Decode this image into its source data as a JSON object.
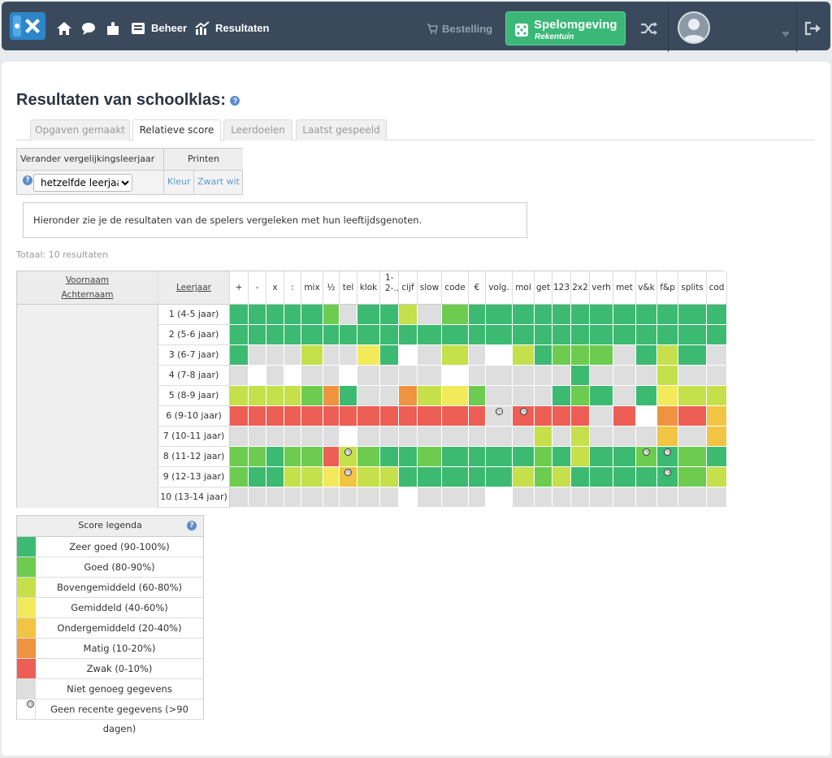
{
  "nav": {
    "beheer": "Beheer",
    "resultaten": "Resultaten",
    "bestelling": "Bestelling",
    "spelomgeving": "Spelomgeving",
    "spelomgeving_sub": "Rekentuin"
  },
  "page": {
    "title": "Resultaten van schoolklas:",
    "help": "?"
  },
  "tabs": [
    {
      "label": "Opgaven gemaakt",
      "active": false
    },
    {
      "label": "Relatieve score",
      "active": true
    },
    {
      "label": "Leerdoelen",
      "active": false
    },
    {
      "label": "Laatst gespeeld",
      "active": false
    }
  ],
  "controls": {
    "compare_label": "Verander vergelijkingsleerjaar",
    "compare_value": "hetzelfde leerjaar",
    "print_label": "Printen",
    "print_color": "Kleur",
    "print_bw": "Zwart wit"
  },
  "info_text": "Hieronder zie je de resultaten van de spelers vergeleken met hun leeftijdsgenoten.",
  "total_text": "Totaal: 10 resultaten",
  "table": {
    "col_voornaam": "Voornaam",
    "col_achternaam": "Achternaam",
    "col_leerjaar": "Leerjaar",
    "games": [
      "+",
      "-",
      "x",
      ":",
      "mix",
      "½",
      "tel",
      "klok",
      "1-2-..",
      "cijf",
      "slow",
      "code",
      "€",
      "volg.",
      "mol",
      "get",
      "123",
      "2x2",
      "verh",
      "met",
      "v&k",
      "f&p",
      "splits",
      "cod"
    ],
    "rows": [
      {
        "label": "1 (4-5 jaar)",
        "cells": [
          "Z",
          "Z",
          "Z",
          "Z",
          "Z",
          "G",
          "N",
          "Z",
          "Z",
          "B",
          "N",
          "G",
          "Z",
          "Z",
          "Z",
          "Z",
          "Z",
          "Z",
          "Z",
          "Z",
          "Z",
          "Z",
          "Z",
          "Z"
        ]
      },
      {
        "label": "2 (5-6 jaar)",
        "cells": [
          "Z",
          "Z",
          "Z",
          "Z",
          "Z",
          "Z",
          "Z",
          "Z",
          "Z",
          "Z",
          "Z",
          "Z",
          "Z",
          "Z",
          "Z",
          "Z",
          "Z",
          "Z",
          "Z",
          "Z",
          "Z",
          "Z",
          "Z",
          "Z"
        ]
      },
      {
        "label": "3 (6-7 jaar)",
        "cells": [
          "Z",
          "N",
          "N",
          "N",
          "B",
          "N",
          "N",
          "M",
          "Z",
          "W",
          "N",
          "B",
          "N",
          "W",
          "B",
          "Z",
          "G",
          "G",
          "G",
          "N",
          "Z",
          "B",
          "Z",
          "N"
        ]
      },
      {
        "label": "4 (7-8 jaar)",
        "cells": [
          "N",
          "W",
          "N",
          "W",
          "N",
          "N",
          "W",
          "N",
          "N",
          "N",
          "N",
          "W",
          "N",
          "N",
          "N",
          "N",
          "N",
          "Z",
          "N",
          "N",
          "N",
          "B",
          "N",
          "N"
        ]
      },
      {
        "label": "5 (8-9 jaar)",
        "cells": [
          "B",
          "B",
          "B",
          "B",
          "G",
          "R",
          "Z",
          "N",
          "N",
          "R",
          "B",
          "M",
          "G",
          "N",
          "N",
          "N",
          "Z",
          "G",
          "Z",
          "N",
          "Z",
          "M",
          "B",
          "B"
        ]
      },
      {
        "label": "6 (9-10 jaar)",
        "cells": [
          "X",
          "X",
          "X",
          "X",
          "X",
          "X",
          "X",
          "X",
          "X",
          "X",
          "X",
          "X",
          "X",
          "N",
          "X",
          "X",
          "X",
          "X",
          "N",
          "X",
          "W",
          "R",
          "X",
          "O"
        ]
      },
      {
        "label": "7 (10-11 jaar)",
        "cells": [
          "N",
          "N",
          "N",
          "N",
          "N",
          "N",
          "W",
          "N",
          "N",
          "N",
          "N",
          "N",
          "N",
          "N",
          "N",
          "B",
          "N",
          "B",
          "N",
          "N",
          "N",
          "O",
          "N",
          "O"
        ]
      },
      {
        "label": "8 (11-12 jaar)",
        "cells": [
          "G",
          "G",
          "Z",
          "G",
          "G",
          "X",
          "B",
          "G",
          "Z",
          "Z",
          "G",
          "Z",
          "Z",
          "Z",
          "Z",
          "G",
          "Z",
          "B",
          "Z",
          "Z",
          "G",
          "Z",
          "G",
          "Z"
        ]
      },
      {
        "label": "9 (12-13 jaar)",
        "cells": [
          "G",
          "Z",
          "Z",
          "B",
          "B",
          "M",
          "O",
          "B",
          "B",
          "Z",
          "Z",
          "Z",
          "Z",
          "Z",
          "B",
          "G",
          "B",
          "Z",
          "Z",
          "Z",
          "Z",
          "Z",
          "G",
          "B"
        ]
      },
      {
        "label": "10 (13-14 jaar)",
        "cells": [
          "N",
          "N",
          "N",
          "N",
          "N",
          "N",
          "N",
          "N",
          "N",
          "W",
          "N",
          "N",
          "N",
          "W",
          "N",
          "N",
          "N",
          "N",
          "N",
          "N",
          "N",
          "N",
          "N",
          "N"
        ]
      }
    ],
    "clock_marks": [
      {
        "row": 5,
        "col": 13
      },
      {
        "row": 5,
        "col": 14
      },
      {
        "row": 7,
        "col": 6
      },
      {
        "row": 7,
        "col": 20
      },
      {
        "row": 7,
        "col": 21
      },
      {
        "row": 8,
        "col": 6
      },
      {
        "row": 8,
        "col": 21
      }
    ]
  },
  "legend": {
    "title": "Score legenda",
    "items": [
      {
        "code": "Z",
        "label": "Zeer goed (90-100%)"
      },
      {
        "code": "G",
        "label": "Goed (80-90%)"
      },
      {
        "code": "B",
        "label": "Bovengemiddeld (60-80%)"
      },
      {
        "code": "M",
        "label": "Gemiddeld (40-60%)"
      },
      {
        "code": "O",
        "label": "Ondergemiddeld (20-40%)"
      },
      {
        "code": "R",
        "label": "Matig (10-20%)"
      },
      {
        "code": "X",
        "label": "Zwak (0-10%)"
      },
      {
        "code": "N",
        "label": "Niet genoeg gegevens"
      },
      {
        "code": "W",
        "label": "Geen recente gegevens (>90 dagen)"
      }
    ],
    "colors": {
      "Z": "#3cba72",
      "G": "#6dcc50",
      "B": "#c5e04a",
      "M": "#f2ea5b",
      "O": "#f2c443",
      "R": "#ef9340",
      "X": "#ed5e54",
      "N": "#dedede",
      "W": "#ffffff"
    }
  }
}
